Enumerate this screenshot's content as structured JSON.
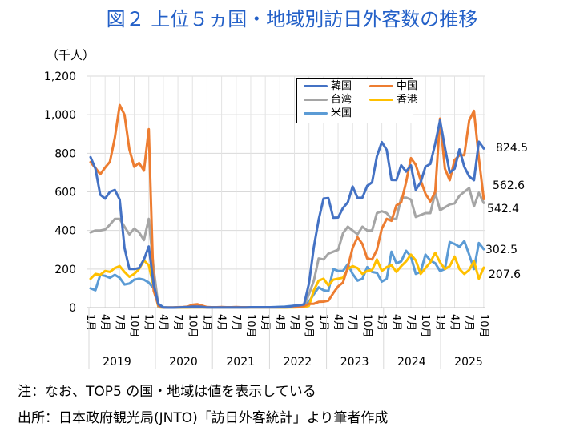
{
  "title": "図２ 上位５ヵ国・地域別訪日外客数の推移",
  "notes": [
    "注：なお、TOP5 の国・地域は値を表示している",
    "出所：日本政府観光局(JNTO)「訪日外客統計」より筆者作成"
  ],
  "chart_data": {
    "type": "line",
    "unit_label": "（千人）",
    "ylim": [
      0,
      1200
    ],
    "yticks": [
      "0",
      "200",
      "400",
      "600",
      "800",
      "1,000",
      "1,200"
    ],
    "ytick_values": [
      0,
      200,
      400,
      600,
      800,
      1000,
      1200
    ],
    "month_labels": [
      "1月",
      "4月",
      "7月",
      "10月"
    ],
    "years": [
      "2019",
      "2020",
      "2021",
      "2022",
      "2023",
      "2024",
      "2025"
    ],
    "grid": true,
    "legend_position": "top-center",
    "series": [
      {
        "name": "韓国",
        "color": "#4472c4",
        "end_label": "824.5",
        "values": [
          780,
          720,
          585,
          565,
          600,
          610,
          560,
          310,
          200,
          200,
          205,
          250,
          317,
          120,
          17,
          1,
          0,
          0,
          1,
          2,
          3,
          5,
          5,
          4,
          1,
          1,
          1,
          1,
          1,
          1,
          1,
          1,
          1,
          2,
          2,
          2,
          2,
          2,
          2,
          3,
          3,
          6,
          10,
          12,
          17,
          125,
          315,
          456,
          565,
          568,
          466,
          467,
          516,
          546,
          628,
          569,
          570,
          631,
          650,
          784,
          858,
          818,
          662,
          661,
          738,
          705,
          737,
          610,
          650,
          730,
          745,
          850,
          970,
          830,
          700,
          720,
          820,
          730,
          680,
          660,
          860,
          824.5
        ]
      },
      {
        "name": "中国",
        "color": "#ed7d31",
        "end_label": "562.6",
        "values": [
          754,
          724,
          691,
          726,
          756,
          880,
          1050,
          1000,
          820,
          730,
          750,
          710,
          925,
          88,
          10,
          0,
          1,
          1,
          2,
          3,
          5,
          15,
          18,
          10,
          3,
          2,
          2,
          3,
          2,
          2,
          3,
          2,
          2,
          2,
          2,
          2,
          2,
          2,
          2,
          2,
          2,
          3,
          5,
          6,
          8,
          20,
          20,
          30,
          31,
          36,
          75,
          110,
          130,
          210,
          310,
          365,
          330,
          255,
          250,
          300,
          410,
          460,
          450,
          530,
          545,
          650,
          775,
          740,
          660,
          590,
          550,
          600,
          980,
          720,
          660,
          765,
          790,
          790,
          970,
          1020,
          775,
          562.6
        ]
      },
      {
        "name": "台湾",
        "color": "#a5a5a5",
        "end_label": "542.4",
        "values": [
          390,
          400,
          400,
          405,
          430,
          460,
          460,
          420,
          380,
          410,
          390,
          350,
          460,
          200,
          5,
          0,
          0,
          0,
          1,
          1,
          1,
          1,
          1,
          1,
          0,
          0,
          0,
          0,
          0,
          0,
          0,
          0,
          0,
          0,
          0,
          0,
          0,
          0,
          0,
          1,
          1,
          2,
          4,
          6,
          9,
          70,
          140,
          255,
          250,
          280,
          290,
          300,
          385,
          420,
          400,
          380,
          420,
          400,
          400,
          490,
          500,
          490,
          460,
          460,
          570,
          570,
          560,
          470,
          480,
          490,
          490,
          595,
          505,
          520,
          535,
          540,
          580,
          600,
          620,
          525,
          595,
          542.4
        ]
      },
      {
        "name": "香港",
        "color": "#ffc000",
        "end_label": "207.6",
        "values": [
          150,
          175,
          170,
          190,
          185,
          205,
          215,
          185,
          160,
          175,
          200,
          245,
          220,
          110,
          2,
          0,
          0,
          0,
          0,
          0,
          0,
          1,
          1,
          1,
          0,
          0,
          0,
          0,
          0,
          0,
          0,
          0,
          0,
          0,
          0,
          0,
          0,
          0,
          0,
          0,
          0,
          1,
          1,
          2,
          3,
          10,
          90,
          140,
          150,
          115,
          145,
          150,
          155,
          200,
          215,
          205,
          175,
          190,
          195,
          250,
          190,
          210,
          220,
          185,
          215,
          240,
          275,
          245,
          175,
          205,
          235,
          285,
          235,
          200,
          215,
          265,
          200,
          175,
          195,
          240,
          150,
          207.6
        ]
      },
      {
        "name": "米国",
        "color": "#5b9bd5",
        "end_label": "302.5",
        "values": [
          100,
          90,
          170,
          165,
          155,
          170,
          155,
          120,
          125,
          145,
          150,
          145,
          130,
          100,
          20,
          2,
          1,
          1,
          2,
          2,
          2,
          2,
          3,
          3,
          2,
          2,
          2,
          2,
          2,
          2,
          2,
          2,
          2,
          2,
          2,
          2,
          2,
          2,
          3,
          4,
          5,
          8,
          10,
          12,
          15,
          30,
          70,
          105,
          90,
          85,
          200,
          190,
          190,
          225,
          175,
          140,
          150,
          210,
          185,
          180,
          135,
          150,
          290,
          230,
          240,
          295,
          265,
          175,
          185,
          275,
          245,
          230,
          190,
          200,
          340,
          330,
          315,
          345,
          275,
          200,
          335,
          302.5
        ]
      }
    ]
  }
}
